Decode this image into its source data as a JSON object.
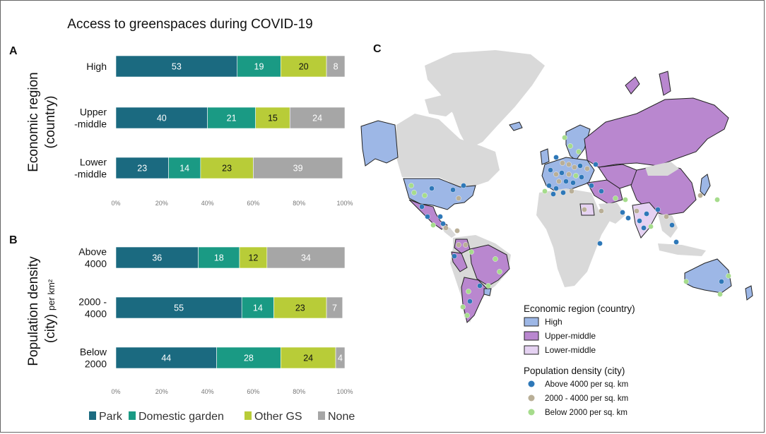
{
  "title": "Access to greenspaces during COVID-19",
  "colors": {
    "park": "#1b6a80",
    "garden": "#1a9a84",
    "other": "#b8cc38",
    "none": "#a6a6a6"
  },
  "chart_data": [
    {
      "panel": "A",
      "type": "bar",
      "stacked": true,
      "orientation": "horizontal",
      "ylabel": [
        "Economic region",
        "(country)"
      ],
      "categories": [
        [
          "High"
        ],
        [
          "Upper",
          "-middle"
        ],
        [
          "Lower",
          "-middle"
        ]
      ],
      "series": [
        {
          "name": "Park",
          "values": [
            53,
            40,
            23
          ]
        },
        {
          "name": "Domestic garden",
          "values": [
            19,
            21,
            14
          ]
        },
        {
          "name": "Other GS",
          "values": [
            20,
            15,
            23
          ]
        },
        {
          "name": "None",
          "values": [
            8,
            24,
            39
          ]
        }
      ],
      "xticks": [
        "0%",
        "20%",
        "40%",
        "60%",
        "80%",
        "100%"
      ],
      "xlim": [
        0,
        100
      ]
    },
    {
      "panel": "B",
      "type": "bar",
      "stacked": true,
      "orientation": "horizontal",
      "ylabel": [
        "Population density",
        "(city)"
      ],
      "ylabel_unit": "per km²",
      "categories": [
        [
          "Above",
          "4000"
        ],
        [
          "2000 -",
          "4000"
        ],
        [
          "Below",
          "2000"
        ]
      ],
      "series": [
        {
          "name": "Park",
          "values": [
            36,
            55,
            44
          ]
        },
        {
          "name": "Domestic garden",
          "values": [
            18,
            14,
            28
          ]
        },
        {
          "name": "Other GS",
          "values": [
            12,
            23,
            24
          ]
        },
        {
          "name": "None",
          "values": [
            34,
            7,
            4
          ]
        }
      ],
      "xticks": [
        "0%",
        "20%",
        "40%",
        "60%",
        "80%",
        "100%"
      ],
      "xlim": [
        0,
        100
      ]
    }
  ],
  "legend_bottom": [
    "Park",
    "Domestic garden",
    "Other GS",
    "None"
  ],
  "map": {
    "panel": "C",
    "legend_region_title": "Economic region (country)",
    "region_items": [
      {
        "label": "High",
        "color": "#9db7e6"
      },
      {
        "label": "Upper-middle",
        "color": "#b987cf"
      },
      {
        "label": "Lower-middle",
        "color": "#e5d2f2"
      }
    ],
    "legend_density_title": "Population density (city)",
    "density_items": [
      {
        "label": "Above 4000 per sq. km",
        "color": "#2e78b8"
      },
      {
        "label": "2000 - 4000 per sq. km",
        "color": "#b9af97"
      },
      {
        "label": "Below 2000 per sq. km",
        "color": "#a6dc8c"
      }
    ]
  }
}
